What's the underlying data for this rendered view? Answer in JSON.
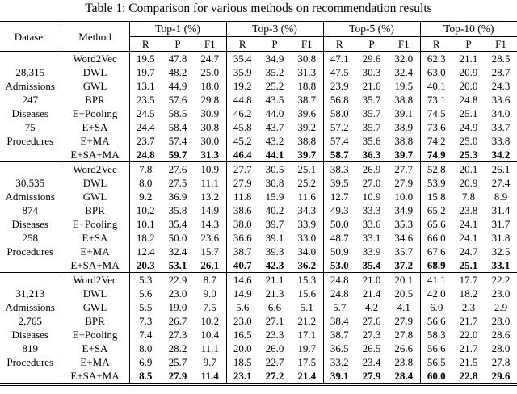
{
  "title": "Table 1: Comparison for various methods on recommendation results",
  "header": {
    "dataset": "Dataset",
    "method": "Method",
    "groups": [
      "Top-1 (%)",
      "Top-3 (%)",
      "Top-5 (%)",
      "Top-10 (%)"
    ],
    "metrics": [
      "R",
      "P",
      "F1"
    ]
  },
  "blocks": [
    {
      "dataset_lines": [
        "28,315",
        "Admissions",
        "247",
        "Diseases",
        "75",
        "Procedures"
      ],
      "rows": [
        {
          "method": "Word2Vec",
          "bold": false,
          "values": [
            "19.5",
            "47.8",
            "24.7",
            "35.4",
            "34.9",
            "30.8",
            "47.1",
            "29.6",
            "32.0",
            "62.3",
            "21.1",
            "28.5"
          ]
        },
        {
          "method": "DWL",
          "bold": false,
          "values": [
            "19.7",
            "48.2",
            "25.0",
            "35.9",
            "35.2",
            "31.3",
            "47.5",
            "30.3",
            "32.4",
            "63.0",
            "20.9",
            "28.7"
          ]
        },
        {
          "method": "GWL",
          "bold": false,
          "values": [
            "13.1",
            "44.9",
            "18.0",
            "19.2",
            "25.2",
            "18.8",
            "23.9",
            "21.6",
            "19.5",
            "40.1",
            "20.0",
            "24.3"
          ]
        },
        {
          "method": "BPR",
          "bold": false,
          "values": [
            "23.5",
            "57.6",
            "29.8",
            "44.8",
            "43.5",
            "38.7",
            "56.8",
            "35.7",
            "38.8",
            "73.1",
            "24.8",
            "33.6"
          ]
        },
        {
          "method": "E+Pooling",
          "bold": false,
          "values": [
            "24.5",
            "58.5",
            "30.9",
            "46.2",
            "44.0",
            "39.6",
            "58.0",
            "35.7",
            "39.1",
            "74.5",
            "25.1",
            "34.0"
          ]
        },
        {
          "method": "E+SA",
          "bold": false,
          "values": [
            "24.4",
            "58.4",
            "30.8",
            "45.8",
            "43.7",
            "39.2",
            "57.2",
            "35.7",
            "38.9",
            "73.6",
            "24.9",
            "33.7"
          ]
        },
        {
          "method": "E+MA",
          "bold": false,
          "values": [
            "23.7",
            "57.4",
            "30.0",
            "45.2",
            "43.2",
            "38.8",
            "57.4",
            "35.6",
            "38.8",
            "74.2",
            "25.0",
            "33.8"
          ]
        },
        {
          "method": "E+SA+MA",
          "bold": true,
          "values": [
            "24.8",
            "59.7",
            "31.3",
            "46.4",
            "44.1",
            "39.7",
            "58.7",
            "36.3",
            "39.7",
            "74.9",
            "25.3",
            "34.2"
          ]
        }
      ]
    },
    {
      "dataset_lines": [
        "30,535",
        "Admissions",
        "874",
        "Diseases",
        "258",
        "Procedures"
      ],
      "rows": [
        {
          "method": "Word2Vec",
          "bold": false,
          "values": [
            "7.8",
            "27.6",
            "10.9",
            "27.7",
            "30.5",
            "25.1",
            "38.3",
            "26.9",
            "27.7",
            "52.8",
            "20.1",
            "26.1"
          ]
        },
        {
          "method": "DWL",
          "bold": false,
          "values": [
            "8.0",
            "27.5",
            "11.1",
            "27.9",
            "30.8",
            "25.2",
            "39.5",
            "27.0",
            "27.9",
            "53.9",
            "20.9",
            "27.4"
          ]
        },
        {
          "method": "GWL",
          "bold": false,
          "values": [
            "9.2",
            "36.9",
            "13.2",
            "11.8",
            "15.9",
            "11.6",
            "12.7",
            "10.9",
            "10.0",
            "15.8",
            "7.8",
            "8.9"
          ]
        },
        {
          "method": "BPR",
          "bold": false,
          "values": [
            "10.2",
            "35.8",
            "14.9",
            "38.6",
            "40.2",
            "34.3",
            "49.3",
            "33.3",
            "34.9",
            "65.2",
            "23.8",
            "31.4"
          ]
        },
        {
          "method": "E+Pooling",
          "bold": false,
          "values": [
            "10.1",
            "35.4",
            "14.3",
            "38.0",
            "39.7",
            "33.9",
            "50.0",
            "33.6",
            "35.3",
            "65.6",
            "24.1",
            "31.7"
          ]
        },
        {
          "method": "E+SA",
          "bold": false,
          "values": [
            "18.2",
            "50.0",
            "23.6",
            "36.6",
            "39.1",
            "33.0",
            "48.7",
            "33.1",
            "34.6",
            "66.0",
            "24.1",
            "31.8"
          ]
        },
        {
          "method": "E+MA",
          "bold": false,
          "values": [
            "12.4",
            "32.4",
            "15.7",
            "38.7",
            "39.3",
            "34.0",
            "50.9",
            "33.9",
            "35.7",
            "67.6",
            "24.7",
            "32.5"
          ]
        },
        {
          "method": "E+SA+MA",
          "bold": true,
          "values": [
            "20.3",
            "53.1",
            "26.1",
            "40.7",
            "42.3",
            "36.2",
            "53.0",
            "35.4",
            "37.2",
            "68.9",
            "25.1",
            "33.1"
          ]
        }
      ]
    },
    {
      "dataset_lines": [
        "31,213",
        "Admissions",
        "2,765",
        "Diseases",
        "819",
        "Procedures"
      ],
      "rows": [
        {
          "method": "Word2Vec",
          "bold": false,
          "values": [
            "5.3",
            "22.9",
            "8.7",
            "14.6",
            "21.1",
            "15.3",
            "24.8",
            "21.0",
            "20.1",
            "41.1",
            "17.7",
            "22.2"
          ]
        },
        {
          "method": "DWL",
          "bold": false,
          "values": [
            "5.6",
            "23.0",
            "9.0",
            "14.9",
            "21.3",
            "15.6",
            "24.8",
            "21.4",
            "20.5",
            "42.0",
            "18.2",
            "23.0"
          ]
        },
        {
          "method": "GWL",
          "bold": false,
          "values": [
            "5.5",
            "19.0",
            "7.5",
            "5.6",
            "6.6",
            "5.1",
            "5.7",
            "4.2",
            "4.1",
            "6.0",
            "2.3",
            "2.9"
          ]
        },
        {
          "method": "BPR",
          "bold": false,
          "values": [
            "7.3",
            "26.7",
            "10.2",
            "23.0",
            "27.1",
            "21.2",
            "38.4",
            "27.6",
            "27.9",
            "56.6",
            "21.7",
            "28.0"
          ]
        },
        {
          "method": "E+Pooling",
          "bold": false,
          "values": [
            "7.4",
            "27.3",
            "10.4",
            "16.5",
            "23.3",
            "17.1",
            "38.7",
            "27.3",
            "27.8",
            "58.3",
            "22.0",
            "28.6"
          ]
        },
        {
          "method": "E+SA",
          "bold": false,
          "values": [
            "8.0",
            "28.2",
            "11.1",
            "20.0",
            "26.0",
            "19.7",
            "36.5",
            "26.5",
            "26.6",
            "56.6",
            "21.7",
            "28.0"
          ]
        },
        {
          "method": "E+MA",
          "bold": false,
          "values": [
            "6.9",
            "25.7",
            "9.7",
            "18.5",
            "22.7",
            "17.5",
            "33.2",
            "23.4",
            "23.8",
            "56.5",
            "21.5",
            "27.8"
          ]
        },
        {
          "method": "E+SA+MA",
          "bold": true,
          "values": [
            "8.5",
            "27.9",
            "11.4",
            "23.1",
            "27.2",
            "21.4",
            "39.1",
            "27.9",
            "28.4",
            "60.0",
            "22.8",
            "29.6"
          ]
        }
      ]
    }
  ]
}
